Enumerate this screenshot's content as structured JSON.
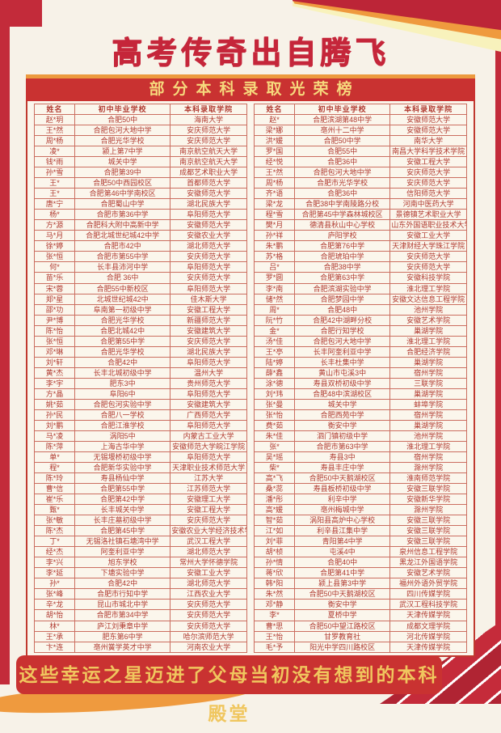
{
  "header": {
    "title": "高考传奇出自腾飞",
    "banner": "部分本科录取光荣榜"
  },
  "footer": {
    "text": "这些幸运之星迈进了父母当初没有想到的本科殿堂"
  },
  "colors": {
    "accent_red": "#c5263a",
    "banner_red": "#c93231",
    "orange": "#ef9a3e",
    "pale_yellow": "#f8f2bc",
    "gold_text": "#f6d87c",
    "footer_gold": "#f0c65e",
    "table_text": "#b03a30",
    "cream": "#f7f2e8"
  },
  "table": {
    "headers": [
      "姓名",
      "初中毕业学校",
      "本科录取学院"
    ],
    "left_rows": [
      [
        "赵*玥",
        "合肥50中",
        "海南大学"
      ],
      [
        "王*然",
        "合肥包河大地中学",
        "安庆师范大学"
      ],
      [
        "周*杨",
        "合肥光华学校",
        "安庆师范大学"
      ],
      [
        "凌*",
        "颍上第7中学",
        "南京航空航天大学"
      ],
      [
        "钱*雨",
        "城关中学",
        "南京航空航天大学"
      ],
      [
        "孙*雪",
        "合肥第39中",
        "成都艺术职业大学"
      ],
      [
        "王*",
        "合肥50中西园校区",
        "首都师范大学"
      ],
      [
        "王*",
        "合肥第46中学南校区",
        "安徽师范大学"
      ],
      [
        "唐*宁",
        "合肥蜀山中学",
        "湖北民族大学"
      ],
      [
        "杨*",
        "合肥市第36中学",
        "阜阳师范大学"
      ],
      [
        "方*源",
        "合肥科大附中高新中学",
        "安徽师范大学"
      ],
      [
        "马*月",
        "合肥北城世纪城42中学",
        "安徽农业大学"
      ],
      [
        "徐*婷",
        "合肥市42中",
        "湖北师范大学"
      ],
      [
        "张*恒",
        "合肥市第55中学",
        "安庆师范大学"
      ],
      [
        "何*",
        "长丰县沛河中学",
        "阜阳师范大学"
      ],
      [
        "苗*乐",
        "合肥 36中",
        "安庆师范大学"
      ],
      [
        "宋*蓉",
        "合肥55中新校区",
        "阜阳师范大学"
      ],
      [
        "郑*星",
        "北城世纪城42中",
        "佳木斯大学"
      ],
      [
        "邵*功",
        "阜南第一初级中学",
        "安徽工程大学"
      ],
      [
        "尹*博",
        "合肥光华学校",
        "新疆师范大学"
      ],
      [
        "陈*怡",
        "合肥北城42中",
        "安徽建筑大学"
      ],
      [
        "张*恒",
        "合肥第55中学",
        "安庆师范大学"
      ],
      [
        "邓*琳",
        "合肥光华学校",
        "湖北民族大学"
      ],
      [
        "刘*轩",
        "合肥42中",
        "阜阳师范大学"
      ],
      [
        "黄*杰",
        "长丰北城初级中学",
        "温州大学"
      ],
      [
        "李*宇",
        "肥东3中",
        "贵州师范大学"
      ],
      [
        "方*晶",
        "阜阳6中",
        "阜阳师范大学"
      ],
      [
        "姚*茹",
        "合肥包河实验中学",
        "安徽建筑大学"
      ],
      [
        "孙*民",
        "合肥八一学校",
        "广西师范大学"
      ],
      [
        "刘*鹏",
        "合肥江淮学校",
        "阜阳师范大学"
      ],
      [
        "马*凌",
        "涡阳5中",
        "内蒙古工业大学"
      ],
      [
        "陈*萍",
        "上海古华中学",
        "安徽师范大学皖江学院"
      ],
      [
        "单*",
        "无锡堰桥初级中学",
        "阜阳师范大学"
      ],
      [
        "程*",
        "合肥新华实验中学",
        "天津职业技术师范大学"
      ],
      [
        "陈*玲",
        "寿县杨仙中学",
        "江苏大学"
      ],
      [
        "曹*信",
        "合肥第55中学",
        "江苏师范大学"
      ],
      [
        "崔*乐",
        "合肥第42中学",
        "安徽理工大学"
      ],
      [
        "甄*",
        "长丰城关中学",
        "安徽工程大学"
      ],
      [
        "张*敏",
        "长丰庄墓初级中学",
        "安庆师范大学"
      ],
      [
        "陈*杰",
        "合肥第45中学",
        "安徽农业大学经济技术学院"
      ],
      [
        "丁*",
        "无锡洛社镇石塘湾中学",
        "武汉工程大学"
      ],
      [
        "经*杰",
        "阿奎利亚中学",
        "湖北师范大学"
      ],
      [
        "李*兴",
        "旭东学校",
        "常州大学怀德学院"
      ],
      [
        "李*延",
        "下塘实验中学",
        "安徽工业大学"
      ],
      [
        "孙*",
        "合肥42中",
        "湖北师范大学"
      ],
      [
        "张*峰",
        "合肥市行知中学",
        "江西农业大学"
      ],
      [
        "辛*龙",
        "昆山市城北中学",
        "安庆师范大学"
      ],
      [
        "胡*怡",
        "合肥市第34中学",
        "安庆师范大学"
      ],
      [
        "林*",
        "庐江刘秉章中学",
        "安庆师范大学"
      ],
      [
        "王*承",
        "肥东第6中学",
        "哈尔滨师范大学"
      ],
      [
        "卞*连",
        "亳州黉学英才中学",
        "河南农业大学"
      ]
    ],
    "right_rows": [
      [
        "赵*",
        "合肥滨湖第48中学",
        "安徽师范大学"
      ],
      [
        "梁*娜",
        "亳州十二中学",
        "安徽师范大学"
      ],
      [
        "洪*媛",
        "合肥50中学",
        "南华大学"
      ],
      [
        "罗*国",
        "合肥55中",
        "南昌大学科学技术学院"
      ],
      [
        "经*悦",
        "合肥36中",
        "安徽工程大学"
      ],
      [
        "王*然",
        "合肥包河大地中学",
        "安庆师范大学"
      ],
      [
        "周*杨",
        "合肥市光华学校",
        "安庆师范大学"
      ],
      [
        "齐*语",
        "合肥36中",
        "信阳师范大学"
      ],
      [
        "梁*龙",
        "合肥38中学南陵路分校",
        "河南中医药大学"
      ],
      [
        "程*雪",
        "合肥第45中学森林城校区",
        "景德镇艺术职业大学"
      ],
      [
        "樊*月",
        "德清县秋山中心学校",
        "山东外国语职业技术大学"
      ],
      [
        "孙*祥",
        "庐阳学校",
        "安徽工业大学"
      ],
      [
        "朱*鹏",
        "合肥第76中学",
        "天津财经大学珠江学院"
      ],
      [
        "苏*格",
        "合肥琥珀中学",
        "安庆师范大学"
      ],
      [
        "吕*",
        "合肥38中学",
        "安庆师范大学"
      ],
      [
        "罗*圆",
        "合肥第63中学",
        "安徽科技学院"
      ],
      [
        "李*南",
        "合肥滨湖实验中学",
        "淮北理工学院"
      ],
      [
        "储*然",
        "合肥梦园中学",
        "安徽文达信息工程学院"
      ],
      [
        "周*",
        "合肥48中",
        "池州学院"
      ],
      [
        "阮*竹",
        "合肥42中湖畔分校",
        "安徽艺术学院"
      ],
      [
        "金*",
        "合肥行知学校",
        "巢湖学院"
      ],
      [
        "汤*佳",
        "合肥包河大地中学",
        "淮北理工学院"
      ],
      [
        "王*亭",
        "长丰阿奎利亚中学",
        "合肥经济学院"
      ],
      [
        "陆*婷",
        "长丰杜集中学",
        "巢湖学院"
      ],
      [
        "薛*鑫",
        "黄山市屯溪3中",
        "宿州学院"
      ],
      [
        "涂*德",
        "寿县双桥初级中学",
        "三联学院"
      ],
      [
        "刘*玮",
        "合肥48中滨湖校区",
        "巢湖学院"
      ],
      [
        "张*曼",
        "城关中学",
        "蚌埠学院"
      ],
      [
        "张*怡",
        "合肥西苑中学",
        "宿州学院"
      ],
      [
        "费*茹",
        "衡安中学",
        "巢湖学院"
      ],
      [
        "朱*佳",
        "泗门镇初级中学",
        "池州学院"
      ],
      [
        "张*",
        "合肥市第63中学",
        "淮北理工学院"
      ],
      [
        "吴*瑶",
        "寿县3中",
        "宿州学院"
      ],
      [
        "柴*",
        "寿县丰庄中学",
        "滁州学院"
      ],
      [
        "高*飞",
        "合肥50中天鹅湖校区",
        "淮南师范学院"
      ],
      [
        "桑*蕊",
        "寿县板桥初级中学",
        "安徽三联学院"
      ],
      [
        "潘*彤",
        "利辛中学",
        "安徽新华学院"
      ],
      [
        "高*媛",
        "亳州梅城中学",
        "滁州学院"
      ],
      [
        "智*茹",
        "涡阳县高炉中心学校",
        "安徽三联学院"
      ],
      [
        "江*如",
        "利辛县江集中学",
        "安徽三联学院"
      ],
      [
        "刘*菲",
        "青阳第4中学",
        "安徽三联学院"
      ],
      [
        "胡*桢",
        "屯溪4中",
        "泉州信息工程学院"
      ],
      [
        "孙*情",
        "合肥40中",
        "黑龙江外国语学院"
      ],
      [
        "蒋*欣",
        "合肥第41中学",
        "安徽艺术学院"
      ],
      [
        "韩*阳",
        "颍上县第3中学",
        "福州外语外贸学院"
      ],
      [
        "朱*然",
        "合肥50中天鹅湖校区",
        "四川传媒学院"
      ],
      [
        "邓*静",
        "衡安中学",
        "武汉工程科技学院"
      ],
      [
        "李*",
        "夏桥中学",
        "天津传媒学院"
      ],
      [
        "曹*思",
        "合肥50中望江路校区",
        "成都文理学院"
      ],
      [
        "王*怡",
        "甘罗教育社",
        "河北传媒学院"
      ],
      [
        "毛*予",
        "阳光中学四川路校区",
        "天津传媒学院"
      ]
    ]
  }
}
